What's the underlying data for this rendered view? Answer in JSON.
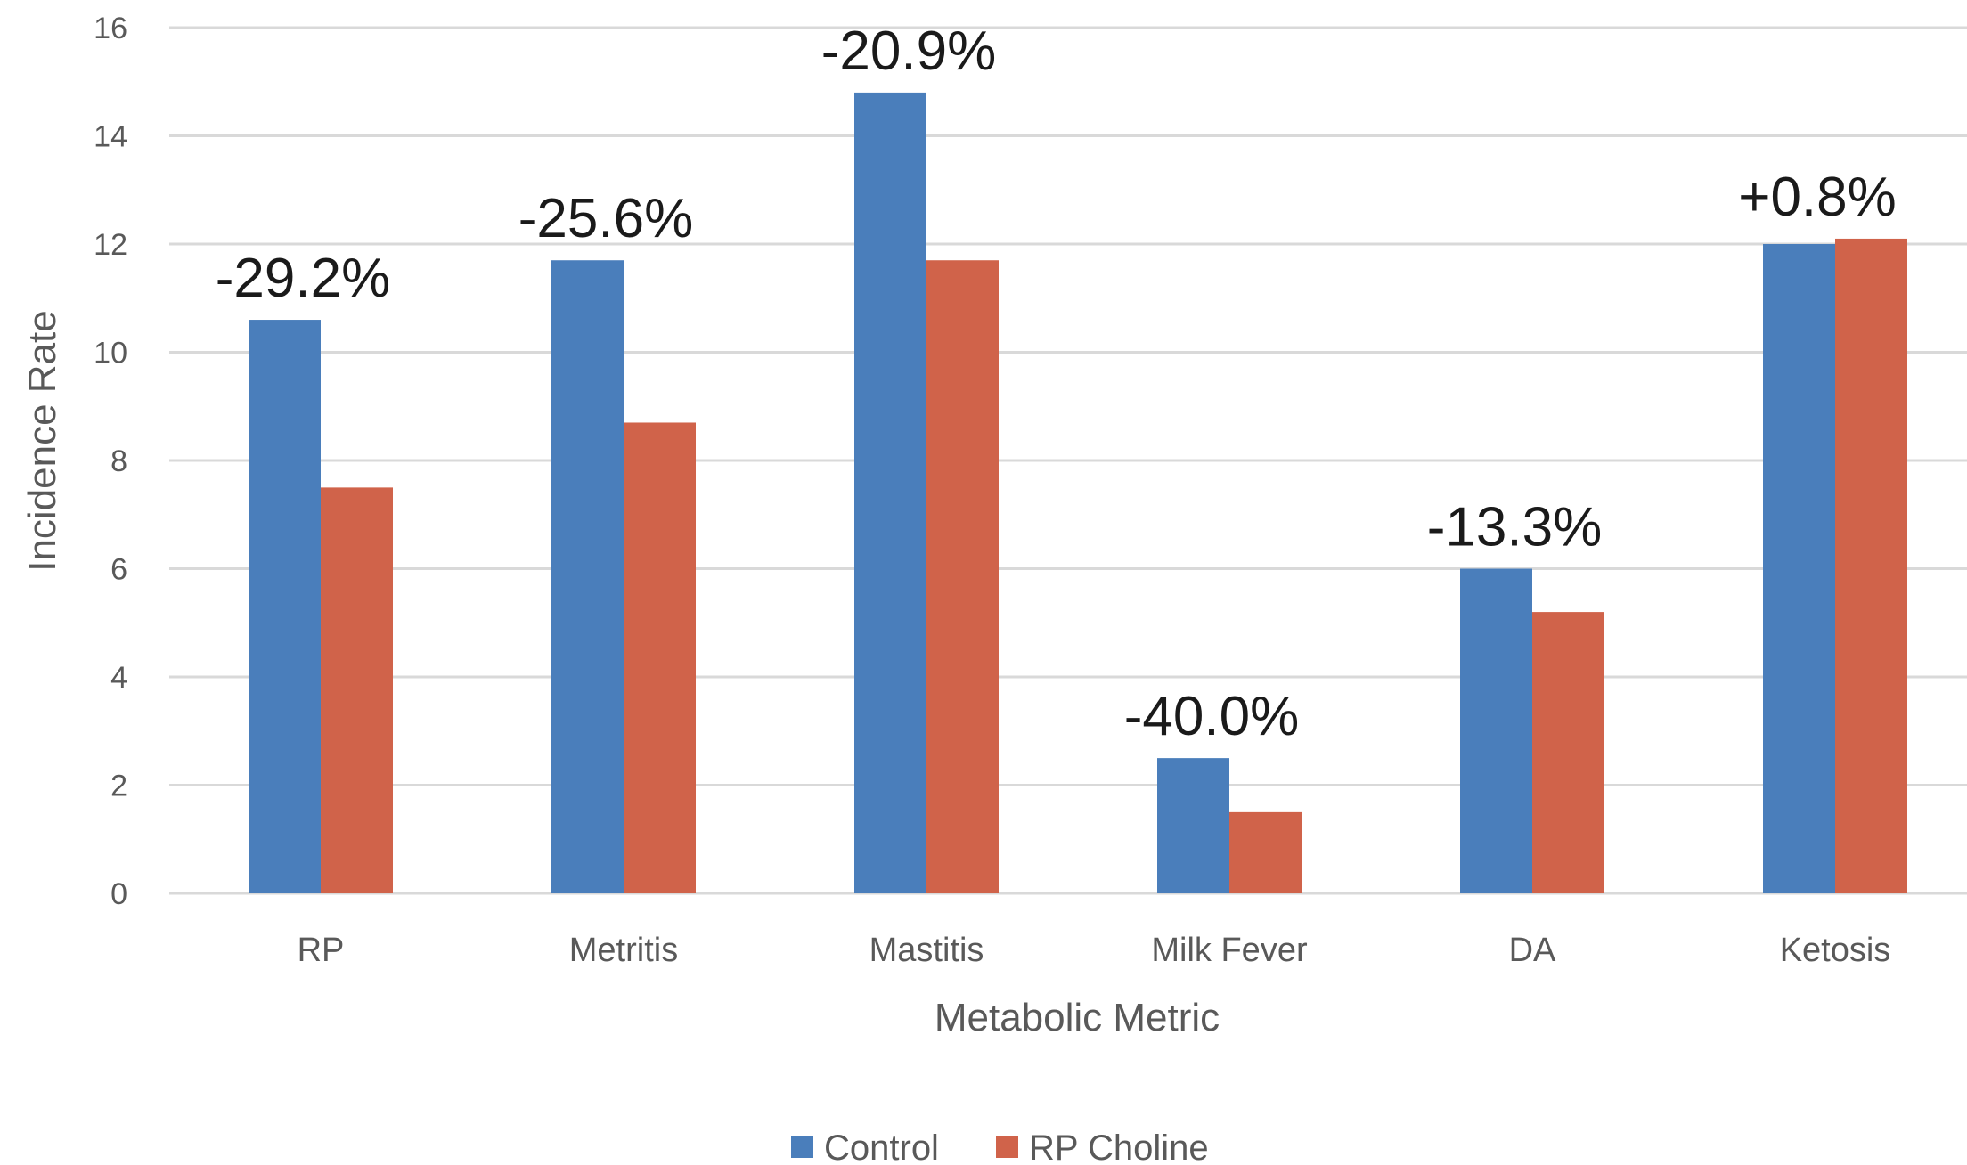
{
  "chart_data": {
    "type": "bar",
    "title": "",
    "xlabel": "Metabolic Metric",
    "ylabel": "Incidence Rate",
    "ylim": [
      0,
      16
    ],
    "yticks": [
      0,
      2,
      4,
      6,
      8,
      10,
      12,
      14,
      16
    ],
    "grid": true,
    "legend_position": "bottom",
    "categories": [
      "RP",
      "Metritis",
      "Mastitis",
      "Milk Fever",
      "DA",
      "Ketosis"
    ],
    "series": [
      {
        "name": "Control",
        "color": "#4a7ebb",
        "values": [
          10.6,
          11.7,
          14.8,
          2.5,
          6.0,
          12.0
        ]
      },
      {
        "name": "RP Choline",
        "color": "#d0634a",
        "values": [
          7.5,
          8.7,
          11.7,
          1.5,
          5.2,
          12.1
        ]
      }
    ],
    "annotations": [
      "-29.2%",
      "-25.6%",
      "-20.9%",
      "-40.0%",
      "-13.3%",
      "+0.8%"
    ]
  }
}
